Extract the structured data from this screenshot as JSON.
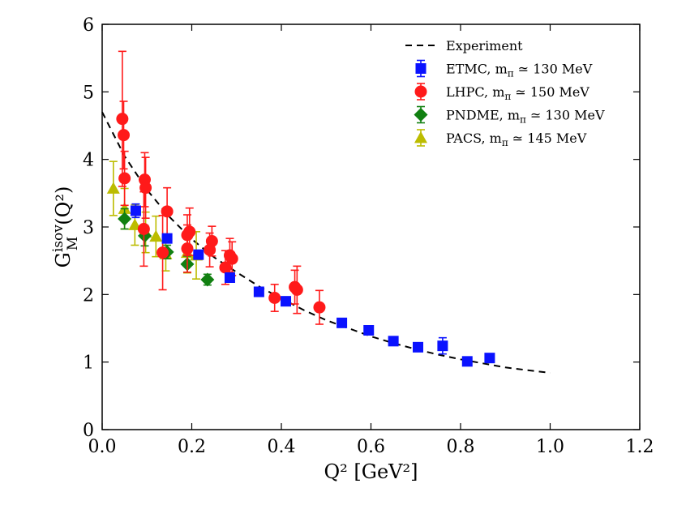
{
  "chart_data": {
    "type": "scatter",
    "xlabel": "Q² [GeV²]",
    "ylabel_base": "G",
    "ylabel_sup": "isov",
    "ylabel_sub": "M",
    "ylabel_arg": "(Q²)",
    "xlim": [
      0.0,
      1.2
    ],
    "ylim": [
      0,
      6
    ],
    "xticks": [
      "0.0",
      "0.2",
      "0.4",
      "0.6",
      "0.8",
      "1.0",
      "1.2"
    ],
    "yticks": [
      "0",
      "1",
      "2",
      "3",
      "4",
      "5",
      "6"
    ],
    "legend_position": "top-right",
    "curve": {
      "name": "Experiment",
      "style": "dashed",
      "color": "#000000",
      "x": [
        0.0,
        0.05,
        0.1,
        0.15,
        0.2,
        0.25,
        0.3,
        0.35,
        0.4,
        0.45,
        0.5,
        0.55,
        0.6,
        0.65,
        0.7,
        0.75,
        0.8,
        0.85,
        0.9,
        0.95,
        1.0
      ],
      "y": [
        4.7,
        4.05,
        3.55,
        3.15,
        2.82,
        2.55,
        2.33,
        2.12,
        1.94,
        1.77,
        1.62,
        1.5,
        1.38,
        1.28,
        1.19,
        1.11,
        1.04,
        0.98,
        0.92,
        0.88,
        0.84
      ]
    },
    "series": [
      {
        "name": "ETMC, ",
        "mass": "130 MeV",
        "marker": "square",
        "color": "#0a12ff",
        "points": [
          {
            "x": 0.075,
            "y": 3.24,
            "err": 0.1
          },
          {
            "x": 0.145,
            "y": 2.83,
            "err": 0.05
          },
          {
            "x": 0.215,
            "y": 2.59,
            "err": 0.06
          },
          {
            "x": 0.285,
            "y": 2.25,
            "err": 0.06
          },
          {
            "x": 0.35,
            "y": 2.04,
            "err": 0.04
          },
          {
            "x": 0.41,
            "y": 1.9,
            "err": 0.05
          },
          {
            "x": 0.535,
            "y": 1.58,
            "err": 0.04
          },
          {
            "x": 0.595,
            "y": 1.47,
            "err": 0.04
          },
          {
            "x": 0.65,
            "y": 1.31,
            "err": 0.04
          },
          {
            "x": 0.705,
            "y": 1.22,
            "err": 0.04
          },
          {
            "x": 0.76,
            "y": 1.24,
            "err": 0.12
          },
          {
            "x": 0.815,
            "y": 1.01,
            "err": 0.04
          },
          {
            "x": 0.865,
            "y": 1.06,
            "err": 0.06
          }
        ]
      },
      {
        "name": "LHPC, ",
        "mass": "150 MeV",
        "marker": "circle",
        "color": "#ff1a1a",
        "points": [
          {
            "x": 0.045,
            "y": 4.6,
            "err": 1.0
          },
          {
            "x": 0.048,
            "y": 4.36,
            "err": 0.5
          },
          {
            "x": 0.05,
            "y": 3.72,
            "err": 0.4
          },
          {
            "x": 0.095,
            "y": 3.7,
            "err": 0.4
          },
          {
            "x": 0.097,
            "y": 3.58,
            "err": 0.45
          },
          {
            "x": 0.093,
            "y": 2.97,
            "err": 0.55
          },
          {
            "x": 0.145,
            "y": 3.23,
            "err": 0.35
          },
          {
            "x": 0.135,
            "y": 2.62,
            "err": 0.55
          },
          {
            "x": 0.19,
            "y": 2.88,
            "err": 0.3
          },
          {
            "x": 0.19,
            "y": 2.68,
            "err": 0.35
          },
          {
            "x": 0.195,
            "y": 2.93,
            "err": 0.35
          },
          {
            "x": 0.245,
            "y": 2.79,
            "err": 0.22
          },
          {
            "x": 0.24,
            "y": 2.66,
            "err": 0.25
          },
          {
            "x": 0.275,
            "y": 2.4,
            "err": 0.25
          },
          {
            "x": 0.285,
            "y": 2.58,
            "err": 0.25
          },
          {
            "x": 0.29,
            "y": 2.53,
            "err": 0.25
          },
          {
            "x": 0.385,
            "y": 1.95,
            "err": 0.2
          },
          {
            "x": 0.43,
            "y": 2.11,
            "err": 0.25
          },
          {
            "x": 0.435,
            "y": 2.07,
            "err": 0.35
          },
          {
            "x": 0.485,
            "y": 1.81,
            "err": 0.25
          }
        ]
      },
      {
        "name": "PNDME, ",
        "mass": "130 MeV",
        "marker": "diamond",
        "color": "#118011",
        "points": [
          {
            "x": 0.05,
            "y": 3.12,
            "err": 0.15
          },
          {
            "x": 0.095,
            "y": 2.87,
            "err": 0.15
          },
          {
            "x": 0.145,
            "y": 2.63,
            "err": 0.1
          },
          {
            "x": 0.19,
            "y": 2.45,
            "err": 0.12
          },
          {
            "x": 0.235,
            "y": 2.22,
            "err": 0.08
          }
        ]
      },
      {
        "name": "PACS, ",
        "mass": "145 MeV",
        "marker": "triangle",
        "color": "#bcbc00",
        "points": [
          {
            "x": 0.025,
            "y": 3.57,
            "err": 0.4
          },
          {
            "x": 0.05,
            "y": 3.27,
            "err": 0.3
          },
          {
            "x": 0.073,
            "y": 3.03,
            "err": 0.3
          },
          {
            "x": 0.097,
            "y": 2.92,
            "err": 0.3
          },
          {
            "x": 0.12,
            "y": 2.86,
            "err": 0.3
          },
          {
            "x": 0.142,
            "y": 2.6,
            "err": 0.25
          },
          {
            "x": 0.19,
            "y": 2.62,
            "err": 0.3
          },
          {
            "x": 0.21,
            "y": 2.58,
            "err": 0.35
          }
        ]
      }
    ],
    "mass_symbol": "m",
    "mass_sub": "π",
    "mass_rel": " ≃ "
  }
}
